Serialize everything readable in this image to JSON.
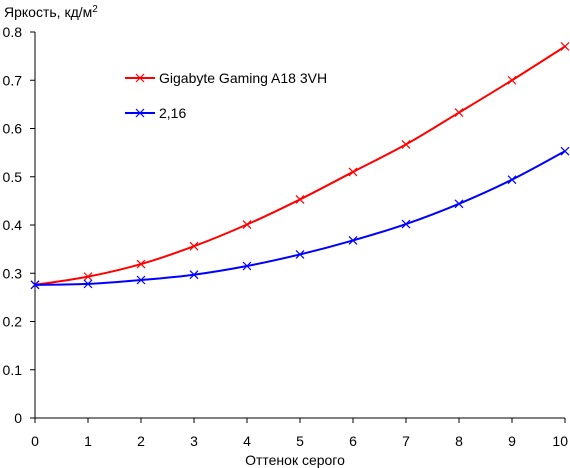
{
  "chart_data": {
    "type": "line",
    "title": "",
    "ylabel": "Яркость, кд/м",
    "ylabel_sup": "2",
    "xlabel": "Оттенок серого",
    "x": [
      0,
      1,
      2,
      3,
      4,
      5,
      6,
      7,
      8,
      9,
      10
    ],
    "xlim": [
      0,
      10
    ],
    "ylim": [
      0,
      0.8
    ],
    "x_ticks": [
      "0",
      "1",
      "2",
      "3",
      "4",
      "5",
      "6",
      "7",
      "8",
      "9",
      "10"
    ],
    "y_ticks": [
      "0",
      "0.1",
      "0.2",
      "0.3",
      "0.4",
      "0.5",
      "0.6",
      "0.7",
      "0.8"
    ],
    "grid": false,
    "legend_position": "upper-left-inside",
    "marker": "x",
    "series": [
      {
        "name": "Gigabyte Gaming A18 3VH",
        "color": "#ff0000",
        "values": [
          0.276,
          0.293,
          0.319,
          0.356,
          0.401,
          0.453,
          0.51,
          0.567,
          0.633,
          0.7,
          0.77
        ]
      },
      {
        "name": "2,16",
        "color": "#0000ff",
        "values": [
          0.276,
          0.278,
          0.286,
          0.297,
          0.315,
          0.339,
          0.368,
          0.402,
          0.444,
          0.494,
          0.553
        ]
      }
    ]
  }
}
